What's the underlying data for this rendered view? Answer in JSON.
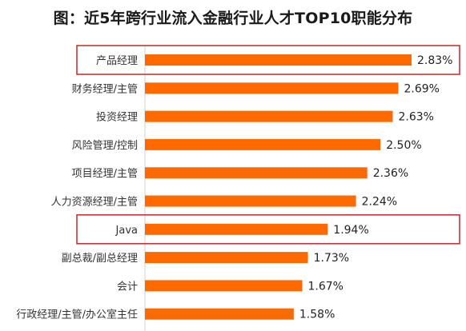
{
  "title": "图：近5年跨行业流入金融行业人才TOP10职能分布",
  "chart_data": {
    "type": "bar",
    "orientation": "horizontal",
    "title": "图：近5年跨行业流入金融行业人才TOP10职能分布",
    "xlabel": "",
    "ylabel": "",
    "grid": false,
    "legend": "none",
    "value_format": "percent",
    "xlim": [
      0,
      2.83
    ],
    "bar_color": "#ff6a00",
    "highlight_color": "#c0282d",
    "highlighted": [
      "产品经理",
      "Java"
    ],
    "categories": [
      "产品经理",
      "财务经理/主管",
      "投资经理",
      "风险管理/控制",
      "项目经理/主管",
      "人力资源经理/主管",
      "Java",
      "副总裁/副总经理",
      "会计",
      "行政经理/主管/办公室主任"
    ],
    "values": [
      2.83,
      2.69,
      2.63,
      2.5,
      2.36,
      2.24,
      1.94,
      1.73,
      1.67,
      1.58
    ],
    "value_labels": [
      "2.83%",
      "2.69%",
      "2.63%",
      "2.50%",
      "2.36%",
      "2.24%",
      "1.94%",
      "1.73%",
      "1.67%",
      "1.58%"
    ]
  }
}
